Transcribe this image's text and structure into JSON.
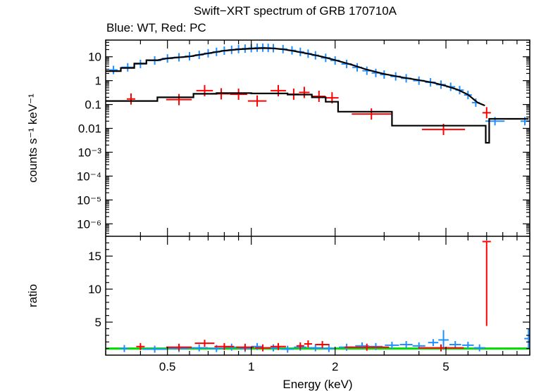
{
  "title": "Swift−XRT spectrum of GRB 170710A",
  "subtitle": "Blue: WT, Red: PC",
  "colors": {
    "wt": "#1f8fff",
    "pc": "#ff0000",
    "model": "#000000",
    "ratio_ref": "#00dd00"
  },
  "chart_data": [
    {
      "type": "scatter",
      "panel": "spectrum",
      "ylabel": "counts s⁻¹ keV⁻¹",
      "xscale": "log",
      "yscale": "log",
      "xlim": [
        0.3,
        10
      ],
      "ylim": [
        3e-07,
        50
      ],
      "ytick_values": [
        10,
        1,
        0.1,
        0.01,
        0.001,
        0.0001,
        1e-05,
        1e-06
      ],
      "ytick_labels": [
        "10",
        "1",
        "0.1",
        "0.01",
        "10⁻³",
        "10⁻⁴",
        "10⁻⁵",
        "10⁻⁶"
      ],
      "series": [
        {
          "name": "WT",
          "color": "#1f8fff",
          "points": [
            [
              0.32,
              2.8
            ],
            [
              0.36,
              3.6
            ],
            [
              0.4,
              5.0
            ],
            [
              0.45,
              7.0
            ],
            [
              0.5,
              8.5
            ],
            [
              0.55,
              9.5
            ],
            [
              0.6,
              10.5
            ],
            [
              0.65,
              12
            ],
            [
              0.7,
              14
            ],
            [
              0.75,
              16
            ],
            [
              0.8,
              18
            ],
            [
              0.85,
              19.5
            ],
            [
              0.9,
              21
            ],
            [
              0.95,
              22
            ],
            [
              1.0,
              23
            ],
            [
              1.05,
              24
            ],
            [
              1.1,
              24
            ],
            [
              1.15,
              23.5
            ],
            [
              1.2,
              23
            ],
            [
              1.3,
              21
            ],
            [
              1.4,
              18.5
            ],
            [
              1.5,
              16
            ],
            [
              1.6,
              13.5
            ],
            [
              1.7,
              11.5
            ],
            [
              1.85,
              9
            ],
            [
              2.0,
              7.0
            ],
            [
              2.2,
              5.0
            ],
            [
              2.4,
              3.6
            ],
            [
              2.6,
              2.6
            ],
            [
              2.8,
              2.1
            ],
            [
              3.0,
              1.8
            ],
            [
              3.3,
              1.5
            ],
            [
              3.6,
              1.25
            ],
            [
              4.0,
              1.0
            ],
            [
              4.4,
              0.85
            ],
            [
              4.8,
              0.68
            ],
            [
              5.2,
              0.55
            ],
            [
              5.6,
              0.4
            ],
            [
              6.0,
              0.25
            ],
            [
              6.4,
              0.12
            ],
            [
              7.5,
              0.02
            ],
            [
              9.6,
              0.02
            ]
          ]
        },
        {
          "name": "PC",
          "color": "#ff0000",
          "points": [
            [
              0.37,
              0.17
            ],
            [
              0.55,
              0.16
            ],
            [
              0.68,
              0.38
            ],
            [
              0.78,
              0.28
            ],
            [
              0.9,
              0.27
            ],
            [
              1.05,
              0.14
            ],
            [
              1.25,
              0.38
            ],
            [
              1.42,
              0.27
            ],
            [
              1.55,
              0.32
            ],
            [
              1.75,
              0.22
            ],
            [
              1.95,
              0.19
            ],
            [
              2.7,
              0.04
            ],
            [
              4.9,
              0.009
            ],
            [
              7.0,
              0.045
            ]
          ]
        },
        {
          "name": "WT model",
          "color": "#000000",
          "points": [
            [
              0.3,
              2.5
            ],
            [
              0.34,
              2.5
            ],
            [
              0.34,
              3.4
            ],
            [
              0.38,
              3.4
            ],
            [
              0.38,
              5.2
            ],
            [
              0.42,
              5.2
            ],
            [
              0.42,
              7.2
            ],
            [
              0.46,
              7.2
            ],
            [
              0.5,
              8.6
            ],
            [
              0.6,
              10.3
            ],
            [
              0.7,
              14
            ],
            [
              0.8,
              18
            ],
            [
              0.9,
              20.5
            ],
            [
              1.0,
              22
            ],
            [
              1.1,
              23
            ],
            [
              1.2,
              22.5
            ],
            [
              1.3,
              20.5
            ],
            [
              1.4,
              18
            ],
            [
              1.6,
              13.5
            ],
            [
              1.8,
              10
            ],
            [
              2.0,
              7.3
            ],
            [
              2.3,
              4.6
            ],
            [
              2.6,
              2.9
            ],
            [
              3.0,
              1.9
            ],
            [
              3.5,
              1.35
            ],
            [
              4.0,
              1.05
            ],
            [
              4.5,
              0.82
            ],
            [
              5.0,
              0.6
            ],
            [
              5.5,
              0.42
            ],
            [
              6.0,
              0.26
            ],
            [
              6.5,
              0.12
            ],
            [
              6.9,
              0.09
            ]
          ]
        },
        {
          "name": "PC model",
          "color": "#000000",
          "points": [
            [
              0.3,
              0.14
            ],
            [
              0.46,
              0.14
            ],
            [
              0.46,
              0.2
            ],
            [
              0.62,
              0.2
            ],
            [
              0.62,
              0.28
            ],
            [
              0.75,
              0.28
            ],
            [
              0.75,
              0.3
            ],
            [
              1.0,
              0.3
            ],
            [
              1.0,
              0.29
            ],
            [
              1.35,
              0.29
            ],
            [
              1.35,
              0.26
            ],
            [
              1.65,
              0.26
            ],
            [
              1.65,
              0.2
            ],
            [
              1.85,
              0.2
            ],
            [
              1.85,
              0.13
            ],
            [
              2.05,
              0.13
            ],
            [
              2.05,
              0.05
            ],
            [
              3.2,
              0.05
            ],
            [
              3.2,
              0.013
            ],
            [
              6.95,
              0.013
            ],
            [
              6.95,
              0.0025
            ],
            [
              7.15,
              0.0025
            ],
            [
              7.15,
              0.025
            ],
            [
              9.9,
              0.025
            ]
          ]
        }
      ]
    },
    {
      "type": "scatter",
      "panel": "ratio",
      "xlabel": "Energy (keV)",
      "ylabel": "ratio",
      "xscale": "log",
      "xlim": [
        0.3,
        10
      ],
      "ylim": [
        0,
        18
      ],
      "xtick_values": [
        0.5,
        1,
        2,
        5
      ],
      "xtick_labels": [
        "0.5",
        "1",
        "2",
        "5"
      ],
      "ytick_values": [
        5,
        10,
        15
      ],
      "ytick_labels": [
        "5",
        "10",
        "15"
      ],
      "reference_line": 1,
      "series": [
        {
          "name": "WT ratio",
          "color": "#1f8fff",
          "points": [
            [
              0.35,
              1.0
            ],
            [
              0.45,
              0.9
            ],
            [
              0.55,
              1.0
            ],
            [
              0.65,
              1.1
            ],
            [
              0.75,
              1.0
            ],
            [
              0.85,
              1.2
            ],
            [
              0.95,
              1.0
            ],
            [
              1.05,
              1.3
            ],
            [
              1.2,
              1.1
            ],
            [
              1.35,
              0.9
            ],
            [
              1.5,
              1.2
            ],
            [
              1.7,
              1.1
            ],
            [
              1.9,
              1.0
            ],
            [
              2.2,
              1.2
            ],
            [
              2.5,
              1.4
            ],
            [
              2.8,
              1.3
            ],
            [
              3.2,
              1.5
            ],
            [
              3.6,
              1.6
            ],
            [
              4.0,
              1.4
            ],
            [
              4.5,
              1.9
            ],
            [
              4.9,
              2.3
            ],
            [
              5.4,
              1.6
            ],
            [
              6.0,
              1.5
            ],
            [
              6.6,
              1.1
            ],
            [
              9.9,
              2.5
            ]
          ]
        },
        {
          "name": "PC ratio",
          "color": "#ff0000",
          "points": [
            [
              0.4,
              1.3
            ],
            [
              0.55,
              1.2
            ],
            [
              0.68,
              1.8
            ],
            [
              0.8,
              1.3
            ],
            [
              0.95,
              1.2
            ],
            [
              1.1,
              1.1
            ],
            [
              1.25,
              1.3
            ],
            [
              1.5,
              1.4
            ],
            [
              1.6,
              1.7
            ],
            [
              1.8,
              1.6
            ],
            [
              2.6,
              1.2
            ],
            [
              4.8,
              1.1
            ],
            [
              7.0,
              17.2
            ]
          ]
        }
      ]
    }
  ]
}
